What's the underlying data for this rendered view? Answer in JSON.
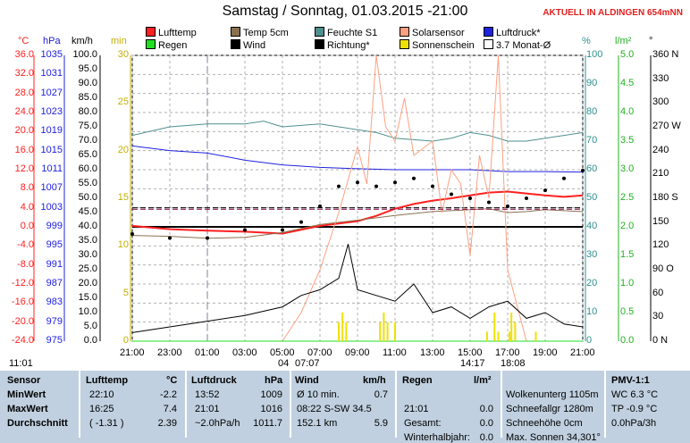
{
  "title": "Samstag / Sonntag, 01.03.2015  -21:00",
  "status": "AKTUELL IN ALDINGEN 654mNN",
  "axis_headers": {
    "temp": "°C",
    "pressure": "hPa",
    "wind": "km/h",
    "sunmin": "min",
    "humid": "%",
    "rain": "l/m²",
    "dir": "°"
  },
  "legend": [
    {
      "label": "Lufttemp",
      "color": "#ff2020"
    },
    {
      "label": "Temp 5cm",
      "color": "#8b7050"
    },
    {
      "label": "Feuchte S1",
      "color": "#4f8f8f"
    },
    {
      "label": "Solarsensor",
      "color": "#ffa080"
    },
    {
      "label": "Luftdruck*",
      "color": "#2020e0"
    },
    {
      "label": "Regen",
      "color": "#20e020"
    },
    {
      "label": "Wind",
      "color": "#000000"
    },
    {
      "label": "Richtung*",
      "color": "#000000"
    },
    {
      "label": "Sonnenschein",
      "color": "#f0e000"
    },
    {
      "label": "3.7 Monat-Ø",
      "color": "#ffffff"
    }
  ],
  "ticks": {
    "temp": [
      "36.0",
      "32.0",
      "28.0",
      "24.0",
      "20.0",
      "16.0",
      "12.0",
      "8.0",
      "4.0",
      "0.0",
      "-4.0",
      "-8.0",
      "-12.0",
      "-16.0",
      "-20.0",
      "-24.0"
    ],
    "pressure": [
      "1035",
      "1031",
      "1027",
      "1023",
      "1019",
      "1015",
      "1011",
      "1007",
      "1003",
      "999",
      "995",
      "991",
      "987",
      "983",
      "979",
      "975"
    ],
    "wind": [
      "100.0",
      "95.0",
      "90.0",
      "85.0",
      "80.0",
      "75.0",
      "70.0",
      "65.0",
      "60.0",
      "55.0",
      "50.0",
      "45.0",
      "40.0",
      "35.0",
      "30.0",
      "25.0",
      "20.0",
      "15.0",
      "10.0",
      "5.0",
      "0.0"
    ],
    "sunmin": [
      "30",
      "25",
      "20",
      "15",
      "10",
      "5",
      "0"
    ],
    "humid": [
      "100",
      "90",
      "80",
      "70",
      "60",
      "50",
      "40",
      "30",
      "20",
      "10",
      "0"
    ],
    "rain": [
      "5.0",
      "4.5",
      "4.0",
      "3.5",
      "3.0",
      "2.5",
      "2.0",
      "1.5",
      "1.0",
      "0.5",
      "0.0"
    ],
    "dir": [
      "360 N",
      "330",
      "300",
      "270 W",
      "240",
      "210",
      "180 S",
      "150",
      "120",
      "90 O",
      "60",
      "30",
      "0   N"
    ]
  },
  "xticks": [
    "21:00",
    "23:00",
    "01:00",
    "03:00",
    "05:00",
    "07:00",
    "09:00",
    "11:00",
    "13:00",
    "15:00",
    "17:00",
    "19:00",
    "21:00"
  ],
  "sun_markers": {
    "rise": "07:07",
    "rise_moon": "04",
    "set": "18:08",
    "set_moon": "14:17",
    "now": "11:01"
  },
  "chart_data": {
    "type": "line",
    "x_range": [
      "21:00",
      "21:00"
    ],
    "series": [
      {
        "name": "Lufttemp",
        "axis": "temp",
        "x": [
          0,
          2,
          4,
          6,
          8,
          10,
          12,
          13,
          14,
          15,
          16,
          17,
          18,
          19,
          20,
          21,
          22,
          23,
          24
        ],
        "y": [
          0.2,
          -0.5,
          -0.8,
          -1.0,
          -1.4,
          0.2,
          1.2,
          2.3,
          3.8,
          4.8,
          5.5,
          6.0,
          6.6,
          7.2,
          7.4,
          7.0,
          6.6,
          6.3,
          6.6
        ]
      },
      {
        "name": "Temp 5cm",
        "axis": "temp",
        "x": [
          0,
          2,
          4,
          6,
          8,
          10,
          12,
          14,
          16,
          18,
          19,
          20,
          21,
          22,
          23,
          24
        ],
        "y": [
          -1.8,
          -2.0,
          -2.4,
          -2.2,
          -1.2,
          0.5,
          1.4,
          2.4,
          3.2,
          3.6,
          3.8,
          3.0,
          3.2,
          3.6,
          3.4,
          3.2
        ]
      },
      {
        "name": "Feuchte S1",
        "axis": "humid",
        "x": [
          0,
          2,
          4,
          6,
          7,
          8,
          10,
          12,
          13,
          14,
          16,
          17,
          18,
          19,
          20,
          21,
          22,
          23,
          24
        ],
        "y": [
          72,
          75,
          76,
          76,
          77,
          75,
          76,
          74,
          73,
          71,
          70,
          71,
          73,
          72,
          70,
          70,
          71,
          72,
          73
        ]
      },
      {
        "name": "Luftdruck*",
        "axis": "pressure",
        "x": [
          0,
          2,
          4,
          6,
          8,
          10,
          12,
          14,
          16,
          18,
          20,
          22,
          24
        ],
        "y": [
          1016,
          1015,
          1014.5,
          1013,
          1012,
          1011.5,
          1011.2,
          1011,
          1011,
          1011,
          1010.6,
          1010.6,
          1010.5
        ]
      },
      {
        "name": "Solarsensor",
        "axis": "wind",
        "x": [
          0,
          8,
          9,
          10,
          11,
          12,
          12.5,
          13,
          13.5,
          14,
          14.5,
          15,
          16,
          16.5,
          17,
          17.5,
          18,
          18.5,
          19,
          19.5,
          20,
          21,
          21.5,
          22,
          24
        ],
        "y": [
          0,
          0,
          10,
          25,
          45,
          68,
          55,
          100,
          75,
          70,
          85,
          65,
          70,
          45,
          60,
          55,
          30,
          65,
          50,
          100,
          25,
          0,
          0,
          0,
          0
        ]
      },
      {
        "name": "Wind",
        "axis": "wind",
        "x": [
          0,
          2,
          4,
          6,
          8,
          9,
          10,
          11,
          11.5,
          12,
          13,
          14,
          15,
          16,
          17,
          18,
          19,
          20,
          21,
          22,
          23,
          24
        ],
        "y": [
          3,
          5,
          7,
          9,
          12,
          16,
          18,
          22,
          34,
          18,
          16,
          14,
          20,
          10,
          12,
          8,
          12,
          14,
          8,
          10,
          6,
          5
        ]
      },
      {
        "name": "Richtung*",
        "axis": "dir",
        "x": [
          0,
          2,
          4,
          6,
          8,
          9,
          10,
          11,
          12,
          13,
          14,
          15,
          16,
          17,
          18,
          19,
          20,
          21,
          22,
          23,
          24
        ],
        "y": [
          135,
          130,
          130,
          140,
          140,
          150,
          170,
          195,
          200,
          195,
          200,
          205,
          195,
          185,
          180,
          175,
          170,
          180,
          190,
          205,
          215
        ]
      },
      {
        "name": "3.7 Monat-Ø",
        "axis": "temp",
        "x": [
          0,
          24
        ],
        "y": [
          3.7,
          3.7
        ]
      },
      {
        "name": "Regen",
        "axis": "rain",
        "x": [
          0,
          24
        ],
        "y": [
          0,
          0
        ]
      },
      {
        "name": "Sonnenschein",
        "axis": "sunmin",
        "x": [
          11.0,
          11.2,
          11.4,
          13.2,
          13.4,
          13.6,
          14.0,
          18.9,
          19.3,
          19.5,
          20.1,
          20.2,
          20.4,
          21.5
        ],
        "y": [
          2,
          3,
          2,
          2,
          3,
          2,
          2,
          1,
          3,
          1,
          1,
          3,
          2,
          1
        ]
      }
    ],
    "hlines": [
      {
        "axis": "temp",
        "y": 0.0
      },
      {
        "axis": "temp",
        "y": 4.0
      }
    ]
  },
  "table": {
    "headers": {
      "sensor": "Sensor",
      "lufttemp": "Lufttemp",
      "lt_unit": "°C",
      "luftdruck": "Luftdruck",
      "ld_unit": "hPa",
      "wind": "Wind",
      "w_unit": "km/h",
      "regen": "Regen",
      "r_unit": "l/m²",
      "pmv": "PMV-1:1"
    },
    "rows": [
      {
        "label": "MinWert",
        "lt_time": "22:10",
        "lt_val": "-2.2",
        "ld_time": "13:52",
        "ld_val": "1009",
        "w_label": "Ø 10 min.",
        "w_val": "0.7",
        "r_time": "",
        "r_val": "",
        "wolke": "Wolkenunterg 1105m",
        "pmv": "WC 6.3 °C"
      },
      {
        "label": "MaxWert",
        "lt_time": "16:25",
        "lt_val": "7.4",
        "ld_time": "21:01",
        "ld_val": "1016",
        "w_label": "08:22    S-SW 34.5",
        "w_val": "",
        "r_time": "21:01",
        "r_val": "0.0",
        "wolke": "Schneefallgr  1280m",
        "pmv": "TP -0.9 °C"
      },
      {
        "label": "Durchschnitt",
        "lt_time": "( -1.31 )",
        "lt_val": "2.39",
        "ld_time": "~2.0hPa/h",
        "ld_val": "1011.7",
        "w_label": "152.1 km",
        "w_val": "5.9",
        "r_time": "Gesamt:",
        "r_val": "0.0",
        "wolke": "Schneehöhe      0cm",
        "pmv": "0.0hPa/3h"
      },
      {
        "label": "",
        "lt_time": "",
        "lt_val": "",
        "ld_time": "",
        "ld_val": "",
        "w_label": "",
        "w_val": "",
        "r_time": "Winterhalbjahr:",
        "r_val": "0.0",
        "wolke": "Max. Sonnen 34,301°",
        "pmv": ""
      }
    ]
  }
}
